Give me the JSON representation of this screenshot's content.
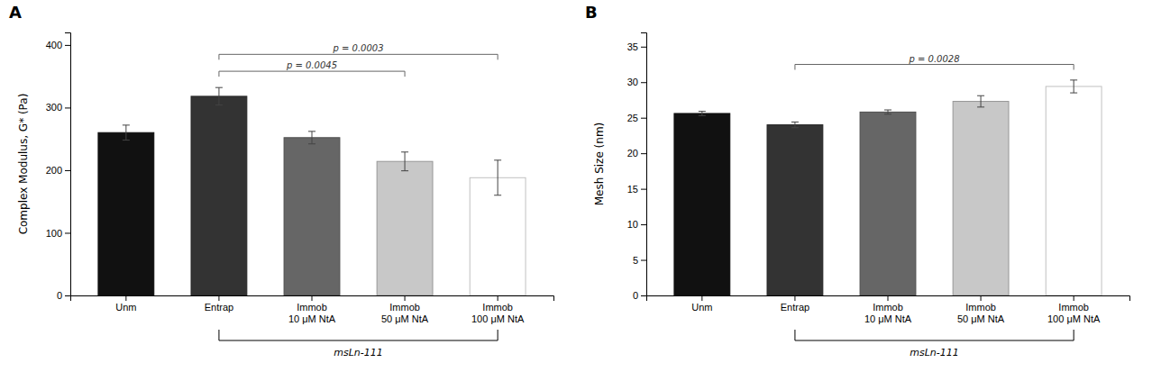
{
  "chart_data": [
    {
      "type": "bar",
      "title": "A",
      "ylabel": "Complex Modulus, G* (Pa)",
      "xlabel": "msLn-111",
      "xlabel_span": [
        1,
        4
      ],
      "categories": [
        "Unm",
        "Entrap",
        "Immob\n10 μM NtA",
        "Immob\n50 μM NtA",
        "Immob\n100 μM NtA"
      ],
      "values": [
        260,
        318,
        252,
        214,
        188
      ],
      "errors": [
        12,
        14,
        10,
        15,
        28
      ],
      "colors": [
        "#111111",
        "#333333",
        "#666666",
        "#c8c8c8",
        "#ffffff"
      ],
      "ylim": [
        0,
        420
      ],
      "yticks": [
        0,
        100,
        200,
        300,
        400
      ],
      "annotations": [
        {
          "x1": 1,
          "x2": 3,
          "y": 358,
          "label": "p = 0.0045"
        },
        {
          "x1": 1,
          "x2": 4,
          "y": 385,
          "label": "p = 0.0003"
        }
      ],
      "grid": false
    },
    {
      "type": "bar",
      "title": "B",
      "ylabel": "Mesh Size (nm)",
      "xlabel": "msLn-111",
      "xlabel_span": [
        1,
        4
      ],
      "categories": [
        "Unm",
        "Entrap",
        "Immob\n10 μM NtA",
        "Immob\n50 μM NtA",
        "Immob\n100 μM NtA"
      ],
      "values": [
        25.6,
        24.0,
        25.8,
        27.3,
        29.4
      ],
      "errors": [
        0.3,
        0.4,
        0.3,
        0.8,
        0.9
      ],
      "colors": [
        "#111111",
        "#333333",
        "#666666",
        "#c8c8c8",
        "#ffffff"
      ],
      "ylim": [
        0,
        37
      ],
      "yticks": [
        0,
        5,
        10,
        15,
        20,
        25,
        30,
        35
      ],
      "annotations": [
        {
          "x1": 1,
          "x2": 4,
          "y": 32.5,
          "label": "p = 0.0028"
        }
      ],
      "grid": false
    }
  ]
}
